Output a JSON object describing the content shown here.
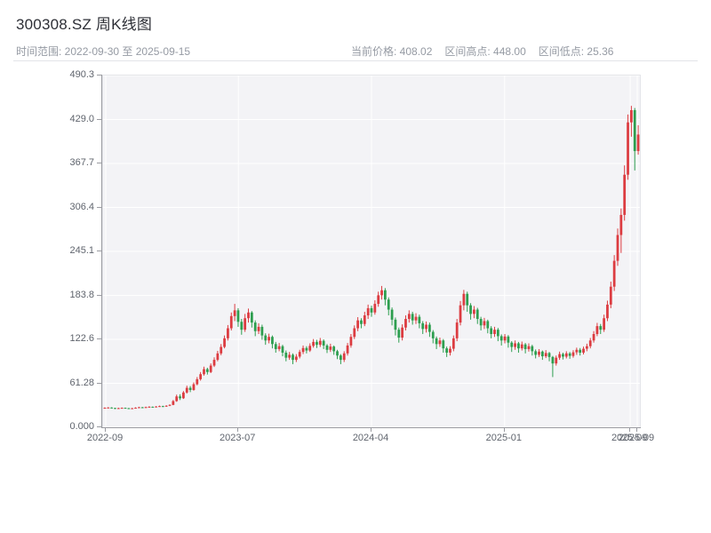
{
  "header": {
    "title": "300308.SZ 周K线图",
    "time_range": "时间范围: 2022-09-30 至 2025-09-15",
    "stats": {
      "current_price": "当前价格: 408.02",
      "range_high": "区间高点: 448.00",
      "range_low": "区间低点: 25.36"
    }
  },
  "chart_data": {
    "type": "candlestick",
    "title": "300308.SZ 周K线图",
    "interval": "weekly",
    "date_range": [
      "2022-09-30",
      "2025-09-15"
    ],
    "current_price": 408.02,
    "range_high": 448.0,
    "range_low": 25.36,
    "ylim": [
      0,
      490.3
    ],
    "grid": true,
    "colors": {
      "up": "#dc3c41",
      "down": "#2d9e4f",
      "grid": "#ffffff"
    },
    "y_ticks": [
      {
        "value": 0,
        "label": "0.000"
      },
      {
        "value": 61.28,
        "label": "61.28"
      },
      {
        "value": 122.6,
        "label": "122.6"
      },
      {
        "value": 183.8,
        "label": "183.8"
      },
      {
        "value": 245.1,
        "label": "245.1"
      },
      {
        "value": 306.4,
        "label": "306.4"
      },
      {
        "value": 367.7,
        "label": "367.7"
      },
      {
        "value": 429.0,
        "label": "429.0"
      },
      {
        "value": 490.3,
        "label": "490.3"
      }
    ],
    "x_ticks": [
      {
        "pos": 0.005,
        "label": "2022-09"
      },
      {
        "pos": 0.252,
        "label": "2023-07"
      },
      {
        "pos": 0.5,
        "label": "2024-04"
      },
      {
        "pos": 0.748,
        "label": "2025-01"
      },
      {
        "pos": 0.982,
        "label": "2025-09"
      },
      {
        "pos": 0.995,
        "label": "2025-09"
      }
    ],
    "ohlc_order": [
      "open",
      "close",
      "low",
      "high"
    ],
    "candles": [
      [
        26.8,
        27.2,
        26.1,
        27.8
      ],
      [
        27.2,
        27.5,
        26.8,
        28.1
      ],
      [
        27.5,
        26.9,
        26.3,
        27.9
      ],
      [
        26.9,
        26.3,
        25.36,
        27.2
      ],
      [
        26.3,
        26.7,
        25.9,
        27.3
      ],
      [
        26.7,
        27.1,
        26.2,
        27.6
      ],
      [
        27.1,
        26.6,
        26.0,
        27.5
      ],
      [
        26.6,
        26.1,
        25.6,
        27.0
      ],
      [
        26.1,
        26.5,
        25.8,
        27.1
      ],
      [
        26.5,
        27.3,
        26.2,
        27.9
      ],
      [
        27.3,
        27.9,
        26.9,
        28.6
      ],
      [
        27.9,
        27.4,
        26.8,
        28.3
      ],
      [
        27.4,
        28.1,
        27.0,
        28.8
      ],
      [
        28.1,
        28.6,
        27.6,
        29.4
      ],
      [
        28.6,
        28.2,
        27.5,
        29.0
      ],
      [
        28.2,
        28.9,
        27.8,
        29.6
      ],
      [
        28.9,
        29.5,
        28.4,
        30.2
      ],
      [
        29.5,
        29.1,
        28.3,
        30.0
      ],
      [
        29.1,
        30.0,
        28.6,
        30.8
      ],
      [
        30.0,
        31.2,
        29.5,
        32.0
      ],
      [
        31.2,
        36.5,
        30.8,
        38.0
      ],
      [
        36.5,
        43.0,
        35.5,
        45.5
      ],
      [
        43.0,
        40.5,
        38.0,
        46.0
      ],
      [
        40.5,
        48.5,
        39.5,
        50.5
      ],
      [
        48.5,
        55.0,
        47.0,
        58.0
      ],
      [
        55.0,
        52.0,
        49.0,
        57.5
      ],
      [
        52.0,
        60.0,
        51.0,
        62.5
      ],
      [
        60.0,
        67.0,
        58.5,
        70.0
      ],
      [
        67.0,
        74.0,
        65.0,
        77.0
      ],
      [
        74.0,
        81.0,
        72.0,
        84.5
      ],
      [
        81.0,
        77.0,
        73.5,
        83.0
      ],
      [
        77.0,
        86.0,
        75.5,
        89.0
      ],
      [
        86.0,
        94.0,
        84.0,
        97.5
      ],
      [
        94.0,
        103.0,
        92.0,
        106.5
      ],
      [
        103.0,
        112.0,
        100.5,
        116.0
      ],
      [
        112.0,
        124.0,
        110.0,
        128.0
      ],
      [
        124.0,
        138.0,
        121.0,
        142.5
      ],
      [
        138.0,
        155.0,
        135.0,
        160.0
      ],
      [
        155.0,
        163.0,
        148.0,
        172.0
      ],
      [
        163.0,
        147.0,
        140.0,
        166.0
      ],
      [
        147.0,
        136.0,
        129.0,
        151.0
      ],
      [
        136.0,
        152.0,
        133.0,
        158.0
      ],
      [
        152.0,
        160.0,
        146.0,
        165.5
      ],
      [
        160.0,
        146.0,
        139.0,
        162.0
      ],
      [
        146.0,
        134.0,
        127.0,
        149.0
      ],
      [
        134.0,
        140.0,
        130.0,
        145.0
      ],
      [
        140.0,
        128.0,
        122.0,
        143.0
      ],
      [
        128.0,
        121.0,
        115.0,
        131.0
      ],
      [
        121.0,
        126.0,
        117.0,
        130.5
      ],
      [
        126.0,
        116.0,
        110.0,
        128.0
      ],
      [
        116.0,
        109.0,
        104.0,
        119.0
      ],
      [
        109.0,
        113.0,
        106.0,
        117.5
      ],
      [
        113.0,
        104.0,
        99.0,
        115.0
      ],
      [
        104.0,
        97.0,
        92.0,
        107.0
      ],
      [
        97.0,
        101.0,
        94.0,
        105.0
      ],
      [
        101.0,
        94.0,
        88.0,
        103.0
      ],
      [
        94.0,
        98.5,
        91.0,
        102.0
      ],
      [
        98.5,
        105.0,
        96.0,
        108.0
      ],
      [
        105.0,
        110.5,
        102.0,
        114.0
      ],
      [
        110.5,
        107.0,
        103.0,
        113.0
      ],
      [
        107.0,
        113.5,
        105.0,
        117.0
      ],
      [
        113.5,
        119.0,
        111.0,
        123.0
      ],
      [
        119.0,
        115.0,
        110.5,
        122.0
      ],
      [
        115.0,
        120.5,
        112.0,
        124.5
      ],
      [
        120.5,
        114.0,
        109.0,
        122.5
      ],
      [
        114.0,
        108.0,
        103.5,
        116.0
      ],
      [
        108.0,
        112.5,
        105.0,
        116.5
      ],
      [
        112.5,
        106.0,
        101.0,
        114.0
      ],
      [
        106.0,
        100.0,
        95.0,
        108.0
      ],
      [
        100.0,
        94.0,
        88.0,
        102.0
      ],
      [
        94.0,
        103.0,
        91.0,
        106.0
      ],
      [
        103.0,
        114.0,
        100.0,
        117.5
      ],
      [
        114.0,
        126.0,
        111.0,
        130.0
      ],
      [
        126.0,
        138.0,
        123.0,
        142.0
      ],
      [
        138.0,
        149.0,
        134.0,
        153.5
      ],
      [
        149.0,
        144.0,
        138.0,
        152.0
      ],
      [
        144.0,
        156.0,
        141.0,
        161.0
      ],
      [
        156.0,
        166.0,
        151.0,
        171.0
      ],
      [
        166.0,
        160.0,
        154.0,
        169.5
      ],
      [
        160.0,
        172.0,
        157.0,
        177.0
      ],
      [
        172.0,
        184.0,
        168.0,
        189.0
      ],
      [
        184.0,
        191.0,
        178.0,
        197.0
      ],
      [
        191.0,
        178.0,
        170.0,
        194.0
      ],
      [
        178.0,
        164.0,
        156.0,
        181.0
      ],
      [
        164.0,
        150.0,
        142.0,
        167.0
      ],
      [
        150.0,
        136.0,
        128.0,
        153.0
      ],
      [
        136.0,
        125.0,
        118.0,
        139.0
      ],
      [
        125.0,
        139.0,
        121.0,
        143.5
      ],
      [
        139.0,
        151.0,
        135.0,
        156.0
      ],
      [
        151.0,
        158.0,
        146.0,
        163.0
      ],
      [
        158.0,
        149.0,
        143.0,
        161.0
      ],
      [
        149.0,
        154.0,
        144.0,
        159.0
      ],
      [
        154.0,
        145.0,
        138.0,
        157.0
      ],
      [
        145.0,
        137.0,
        130.0,
        148.0
      ],
      [
        137.0,
        143.0,
        132.0,
        147.5
      ],
      [
        143.0,
        133.0,
        126.0,
        146.0
      ],
      [
        133.0,
        124.0,
        117.0,
        135.5
      ],
      [
        124.0,
        116.0,
        109.0,
        126.5
      ],
      [
        116.0,
        121.0,
        112.0,
        125.0
      ],
      [
        121.0,
        110.0,
        104.0,
        123.0
      ],
      [
        110.0,
        104.0,
        98.0,
        112.5
      ],
      [
        104.0,
        109.5,
        100.0,
        113.0
      ],
      [
        109.5,
        124.0,
        106.0,
        128.0
      ],
      [
        124.0,
        146.0,
        120.0,
        151.0
      ],
      [
        146.0,
        170.0,
        142.0,
        176.0
      ],
      [
        170.0,
        186.0,
        163.0,
        191.5
      ],
      [
        186.0,
        170.0,
        161.0,
        189.0
      ],
      [
        170.0,
        158.0,
        150.0,
        173.0
      ],
      [
        158.0,
        164.0,
        152.0,
        169.0
      ],
      [
        164.0,
        151.0,
        144.0,
        166.5
      ],
      [
        151.0,
        142.0,
        135.0,
        154.0
      ],
      [
        142.0,
        148.0,
        137.0,
        152.5
      ],
      [
        148.0,
        138.0,
        131.0,
        150.0
      ],
      [
        138.0,
        130.0,
        124.0,
        141.0
      ],
      [
        130.0,
        136.0,
        126.0,
        140.0
      ],
      [
        136.0,
        127.0,
        120.0,
        138.5
      ],
      [
        127.0,
        121.0,
        114.0,
        129.5
      ],
      [
        121.0,
        126.5,
        117.0,
        130.0
      ],
      [
        126.5,
        118.0,
        111.0,
        128.5
      ],
      [
        118.0,
        112.0,
        105.0,
        120.0
      ],
      [
        112.0,
        117.0,
        108.0,
        121.0
      ],
      [
        117.0,
        110.0,
        104.0,
        119.0
      ],
      [
        110.0,
        115.5,
        107.0,
        119.5
      ],
      [
        115.5,
        109.0,
        103.0,
        117.5
      ],
      [
        109.0,
        113.0,
        105.5,
        117.0
      ],
      [
        113.0,
        106.0,
        100.0,
        115.0
      ],
      [
        106.0,
        101.0,
        96.0,
        108.5
      ],
      [
        101.0,
        105.5,
        98.0,
        109.0
      ],
      [
        105.5,
        99.0,
        94.0,
        107.0
      ],
      [
        99.0,
        103.5,
        96.5,
        107.5
      ],
      [
        103.5,
        98.0,
        92.0,
        105.0
      ],
      [
        98.0,
        89.0,
        70.0,
        99.5
      ],
      [
        89.0,
        97.0,
        86.0,
        100.0
      ],
      [
        97.0,
        102.0,
        94.0,
        105.5
      ],
      [
        102.0,
        98.5,
        94.5,
        104.0
      ],
      [
        98.5,
        103.0,
        96.0,
        106.0
      ],
      [
        103.0,
        99.5,
        95.5,
        105.0
      ],
      [
        99.5,
        104.5,
        97.0,
        107.5
      ],
      [
        104.5,
        108.0,
        101.0,
        111.0
      ],
      [
        108.0,
        104.0,
        100.0,
        110.5
      ],
      [
        104.0,
        109.5,
        101.5,
        112.5
      ],
      [
        109.5,
        113.0,
        106.0,
        116.5
      ],
      [
        113.0,
        121.0,
        110.0,
        124.5
      ],
      [
        121.0,
        130.0,
        118.0,
        134.0
      ],
      [
        130.0,
        141.0,
        127.0,
        145.5
      ],
      [
        141.0,
        136.0,
        130.0,
        144.0
      ],
      [
        136.0,
        152.0,
        133.0,
        157.0
      ],
      [
        152.0,
        171.0,
        148.0,
        176.5
      ],
      [
        171.0,
        196.0,
        166.0,
        203.0
      ],
      [
        196.0,
        232.0,
        190.0,
        240.0
      ],
      [
        232.0,
        268.0,
        225.0,
        277.0
      ],
      [
        268.0,
        296.0,
        243.0,
        305.0
      ],
      [
        296.0,
        352.0,
        288.0,
        365.0
      ],
      [
        352.0,
        425.0,
        345.0,
        436.0
      ],
      [
        425.0,
        442.0,
        405.0,
        448.0
      ],
      [
        442.0,
        385.0,
        358.0,
        445.0
      ],
      [
        385.0,
        408.02,
        380.0,
        421.0
      ]
    ]
  }
}
